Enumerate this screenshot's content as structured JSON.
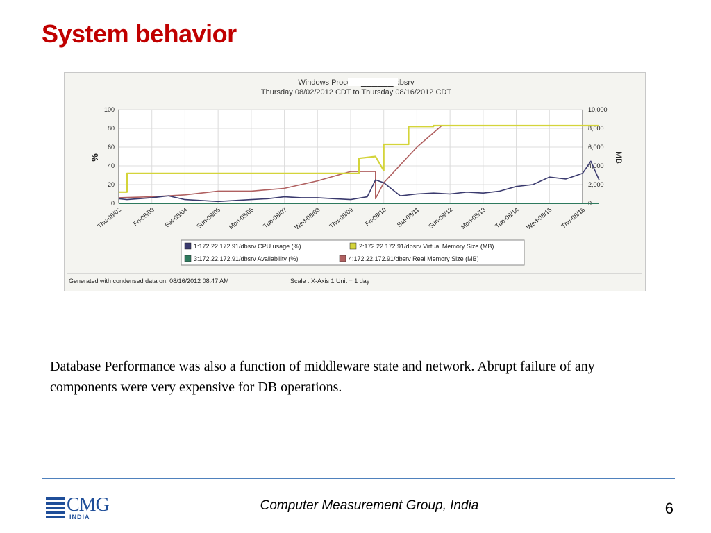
{
  "slide": {
    "title": "System behavior",
    "body": "Database Performance was also a function of middleware state and network. Abrupt failure of any components were very expensive for DB operations.",
    "footer": "Computer Measurement Group, India",
    "page_number": "6",
    "logo": {
      "main": "CMG",
      "sub": "INDIA",
      "icon": "cmg-logo-stripes-icon"
    }
  },
  "colors": {
    "title": "#c00000",
    "cpu": "#3a3a6e",
    "virtual_memory": "#d4d43a",
    "availability": "#2e7a5e",
    "real_memory": "#b06060",
    "divider": "#4f81bd"
  },
  "chart_data": {
    "type": "line",
    "title": "Windows Process ██████/dbsrv",
    "subtitle": "Thursday 08/02/2012 CDT to Thursday 08/16/2012 CDT",
    "ylabel_left": "%",
    "ylabel_right": "MB",
    "y_left_ticks": [
      "0",
      "20",
      "40",
      "60",
      "80",
      "100"
    ],
    "y_right_ticks": [
      "0",
      "2,000",
      "4,000",
      "6,000",
      "8,000",
      "10,000"
    ],
    "ylim_left": [
      0,
      100
    ],
    "ylim_right": [
      0,
      10000
    ],
    "x_ticks": [
      "Thu-08/02",
      "Fri-08/03",
      "Sat-08/04",
      "Sun-08/05",
      "Mon-08/06",
      "Tue-08/07",
      "Wed-08/08",
      "Thu-08/09",
      "Fri-08/10",
      "Sat-08/11",
      "Sun-08/12",
      "Mon-08/13",
      "Tue-08/14",
      "Wed-08/15",
      "Thu-08/16"
    ],
    "x_range_days": [
      0,
      14
    ],
    "grid": true,
    "legend": [
      "1:172.22.172.91/dbsrv CPU usage (%)",
      "2:172.22.172.91/dbsrv Virtual Memory Size (MB)",
      "3:172.22.172.91/dbsrv Availability (%)",
      "4:172.22.172.91/dbsrv Real Memory Size (MB)"
    ],
    "legend_placement": "bottom",
    "footer_left": "Generated with condensed data on: 08/16/2012 08:47 AM",
    "footer_right": "Scale : X-Axis 1 Unit = 1 day",
    "series": [
      {
        "name": "1:172.22.172.91/dbsrv CPU usage (%)",
        "axis": "left",
        "x": [
          "Thu-08/02",
          "Thu-08/02 06:00",
          "Fri-08/03",
          "Fri-08/03 12:00",
          "Sat-08/04",
          "Sat-08/04 12:00",
          "Sun-08/05",
          "Sun-08/05 12:00",
          "Mon-08/06",
          "Mon-08/06 12:00",
          "Tue-08/07",
          "Tue-08/07 12:00",
          "Wed-08/08",
          "Wed-08/08 12:00",
          "Thu-08/09",
          "Thu-08/09 12:00",
          "Thu-08/09 18:00",
          "Fri-08/10",
          "Fri-08/10 12:00",
          "Sat-08/11",
          "Sat-08/11 12:00",
          "Sun-08/12",
          "Sun-08/12 12:00",
          "Mon-08/13",
          "Mon-08/13 12:00",
          "Tue-08/14",
          "Tue-08/14 12:00",
          "Wed-08/15",
          "Wed-08/15 12:00",
          "Thu-08/16",
          "Thu-08/16 06:00",
          "Thu-08/16 12:00"
        ],
        "values": [
          5,
          4,
          6,
          8,
          4,
          3,
          2,
          3,
          4,
          5,
          7,
          6,
          6,
          5,
          4,
          7,
          25,
          22,
          8,
          10,
          11,
          10,
          12,
          11,
          13,
          18,
          20,
          28,
          26,
          32,
          45,
          25
        ]
      },
      {
        "name": "2:172.22.172.91/dbsrv Virtual Memory Size (MB)",
        "axis": "right",
        "x": [
          "Thu-08/02",
          "Thu-08/02 06:00",
          "Thu-08/02 06:00",
          "Thu-08/09 06:00",
          "Thu-08/09 06:00",
          "Thu-08/09 18:00",
          "Fri-08/10",
          "Fri-08/10",
          "Fri-08/10 18:00",
          "Fri-08/10 18:00",
          "Sat-08/11 12:00",
          "Sat-08/11 12:00",
          "Thu-08/16 12:00"
        ],
        "values": [
          1200,
          1200,
          3200,
          3200,
          4800,
          5000,
          3500,
          6300,
          6300,
          8200,
          8200,
          8300,
          8300
        ]
      },
      {
        "name": "3:172.22.172.91/dbsrv Availability (%)",
        "axis": "left",
        "x": [
          "Thu-08/02",
          "Thu-08/16 12:00"
        ],
        "values": [
          0,
          0
        ]
      },
      {
        "name": "4:172.22.172.91/dbsrv Real Memory Size (MB)",
        "axis": "right",
        "x": [
          "Thu-08/02",
          "Fri-08/03",
          "Sat-08/04",
          "Sun-08/05",
          "Mon-08/06",
          "Tue-08/07",
          "Wed-08/08",
          "Thu-08/09",
          "Thu-08/09 18:00",
          "Thu-08/09 18:00",
          "Fri-08/10",
          "Sat-08/11",
          "Sat-08/11 18:00",
          "Thu-08/16 12:00"
        ],
        "values": [
          600,
          700,
          900,
          1300,
          1300,
          1600,
          2400,
          3400,
          3400,
          500,
          2200,
          6000,
          8300,
          8300
        ]
      }
    ]
  }
}
